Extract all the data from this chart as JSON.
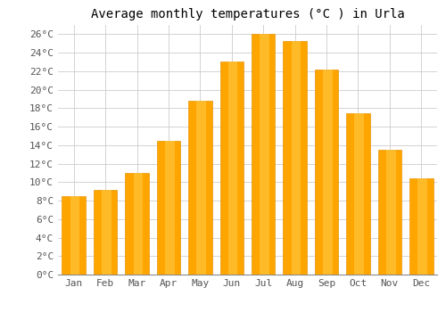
{
  "title": "Average monthly temperatures (°C ) in Urla",
  "months": [
    "Jan",
    "Feb",
    "Mar",
    "Apr",
    "May",
    "Jun",
    "Jul",
    "Aug",
    "Sep",
    "Oct",
    "Nov",
    "Dec"
  ],
  "values": [
    8.5,
    9.2,
    11.0,
    14.5,
    18.8,
    23.0,
    26.0,
    25.3,
    22.2,
    17.5,
    13.5,
    10.4
  ],
  "bar_color_main": "#FFA500",
  "bar_color_light": "#FFD050",
  "background_color": "#FFFFFF",
  "ylim": [
    0,
    27
  ],
  "yticks": [
    0,
    2,
    4,
    6,
    8,
    10,
    12,
    14,
    16,
    18,
    20,
    22,
    24,
    26
  ],
  "grid_color": "#CCCCCC",
  "title_fontsize": 10,
  "tick_fontsize": 8,
  "font_family": "monospace"
}
